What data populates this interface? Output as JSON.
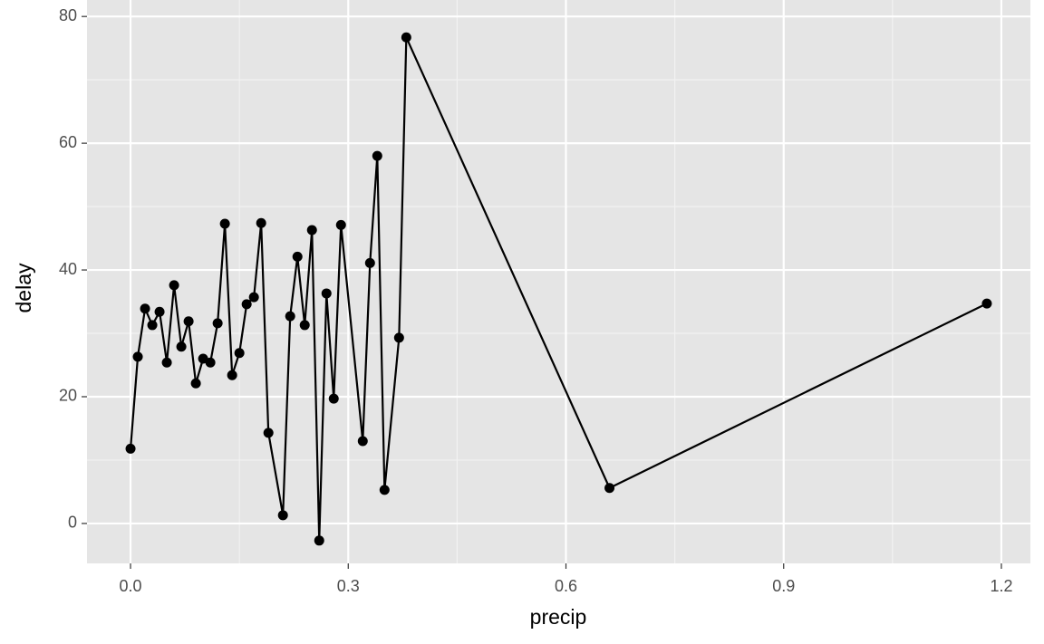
{
  "chart_data": {
    "type": "line",
    "points": true,
    "x_label": "precip",
    "y_label": "delay",
    "x": [
      0.0,
      0.01,
      0.02,
      0.03,
      0.04,
      0.05,
      0.06,
      0.07,
      0.08,
      0.09,
      0.1,
      0.11,
      0.12,
      0.13,
      0.14,
      0.15,
      0.16,
      0.17,
      0.18,
      0.19,
      0.21,
      0.22,
      0.23,
      0.24,
      0.25,
      0.26,
      0.27,
      0.28,
      0.29,
      0.32,
      0.33,
      0.34,
      0.35,
      0.37,
      0.38,
      0.66,
      1.18
    ],
    "values": [
      11.8,
      26.3,
      33.9,
      31.3,
      33.4,
      25.4,
      37.6,
      27.9,
      31.9,
      22.1,
      26.0,
      25.4,
      31.6,
      47.3,
      23.4,
      26.9,
      34.6,
      35.7,
      47.4,
      14.3,
      1.3,
      32.7,
      42.1,
      31.3,
      46.3,
      -2.7,
      36.3,
      19.7,
      47.1,
      13.0,
      41.1,
      58.0,
      5.3,
      29.3,
      76.7,
      5.6,
      34.7
    ],
    "color": "#000000",
    "xlim": [
      -0.06,
      1.24
    ],
    "xticks": [
      {
        "value": 0,
        "label": "0.0"
      },
      0.3,
      0.6,
      0.9,
      1.2
    ],
    "ylim": [
      -6.3,
      82.6
    ],
    "yticks": [
      0,
      20,
      40,
      60,
      80
    ],
    "grid": true,
    "minor_grid": true
  }
}
